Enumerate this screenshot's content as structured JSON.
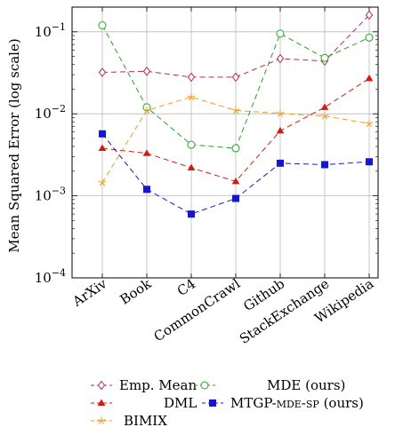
{
  "chart_data": {
    "type": "line",
    "y_scale": "log",
    "ylabel": "Mean Squared Error (log scale)",
    "ylim": [
      0.0001,
      0.2
    ],
    "y_ticks": [
      {
        "value": 0.1,
        "base": "10",
        "exp": "−1"
      },
      {
        "value": 0.01,
        "base": "10",
        "exp": "−2"
      },
      {
        "value": 0.001,
        "base": "10",
        "exp": "−3"
      },
      {
        "value": 0.0001,
        "base": "10",
        "exp": "−4"
      }
    ],
    "categories": [
      "ArXiv",
      "Book",
      "C4",
      "CommonCrawl",
      "Github",
      "StackExchange",
      "Wikipedia"
    ],
    "grid": true,
    "legend_position": "below",
    "series": [
      {
        "name": "Emp. Mean",
        "color": "#c0245a",
        "marker": "diamond",
        "dash": "6 4",
        "values": [
          0.032,
          0.033,
          0.028,
          0.028,
          0.047,
          0.044,
          0.16
        ]
      },
      {
        "name": "MDE (ours)",
        "color": "#22a422",
        "marker": "circle",
        "dash": "6 4",
        "values": [
          0.12,
          0.012,
          0.0042,
          0.0038,
          0.095,
          0.048,
          0.085
        ]
      },
      {
        "name": "DML",
        "color": "#e0140e",
        "marker": "triangle",
        "dash": "6 4",
        "values": [
          0.0038,
          0.0033,
          0.0022,
          0.0015,
          0.0062,
          0.012,
          0.027
        ]
      },
      {
        "name": "MTGP-MDE-SP (ours)",
        "color": "#1414e0",
        "marker": "square",
        "dash": "6 4",
        "values": [
          0.0057,
          0.0012,
          0.0006,
          0.00093,
          0.0025,
          0.0024,
          0.0026
        ]
      },
      {
        "name": "BIMIX",
        "color": "#f59a1c",
        "marker": "star",
        "dash": "6 4",
        "values": [
          0.00145,
          0.011,
          0.016,
          0.011,
          0.0101,
          0.0094,
          0.0076
        ]
      }
    ]
  },
  "legend": {
    "emp_mean": "Emp. Mean",
    "mde": "MDE (ours)",
    "dml": "DML",
    "mtgp_prefix": "MTGP-",
    "mtgp_smallcaps": "mde-sp",
    "mtgp_suffix": " (ours)",
    "bimix": "BIMIX"
  }
}
